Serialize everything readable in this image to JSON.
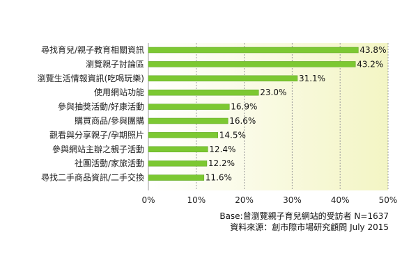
{
  "chart_data": {
    "type": "bar",
    "orientation": "horizontal",
    "categories": [
      "尋找育兒/親子教育相關資訊",
      "瀏覽親子討論區",
      "瀏覽生活情報資訊(吃喝玩樂)",
      "使用網站功能",
      "參與抽獎活動/好康活動",
      "購買商品/參與團購",
      "觀看與分享親子/孕期照片",
      "參與網站主辦之親子活動",
      "社團活動/家旅活動",
      "尋找二手商品資訊/二手交換"
    ],
    "values": [
      43.8,
      43.2,
      31.1,
      23.0,
      16.9,
      16.6,
      14.5,
      12.4,
      12.2,
      11.6
    ],
    "value_labels": [
      "43.8%",
      "43.2%",
      "31.1%",
      "23.0%",
      "16.9%",
      "16.6%",
      "14.5%",
      "12.4%",
      "12.2%",
      "11.6%"
    ],
    "xlim": [
      0,
      50
    ],
    "x_ticks": [
      0,
      10,
      20,
      30,
      40,
      50
    ],
    "x_tick_labels": [
      "0%",
      "10%",
      "20%",
      "30%",
      "40%",
      "50%"
    ],
    "grid": true,
    "colors": {
      "bar": "#7cc832",
      "bar_edge": "#5aa01e",
      "plot_bg_left": "#ffffff",
      "plot_bg_right": "#f3f5c4",
      "grid": "#9a9a9a"
    }
  },
  "footnotes": {
    "base": "Base:曾瀏覽親子育兒網站的受訪者  N=1637",
    "source": "資料來源：創市際市場研究顧問  July 2015"
  }
}
